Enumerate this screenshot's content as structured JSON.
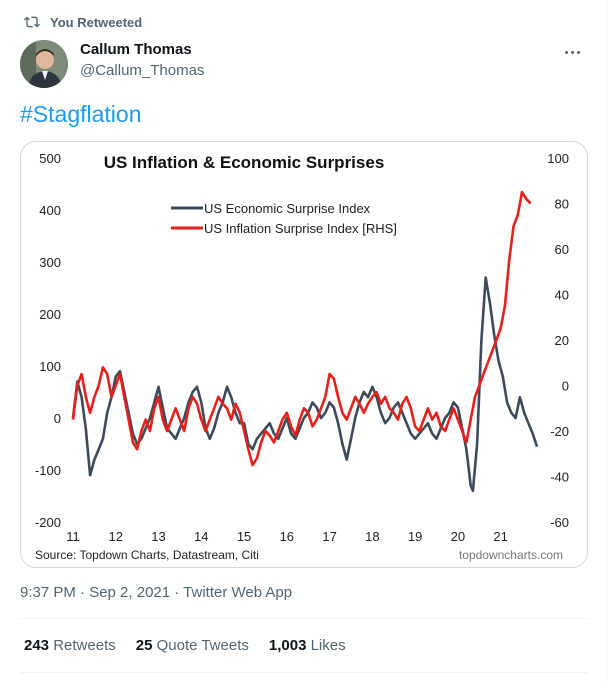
{
  "retweet_header": {
    "label": "You Retweeted",
    "icon": "retweet-icon"
  },
  "author": {
    "name": "Callum Thomas",
    "handle": "@Callum_Thomas"
  },
  "tweet": {
    "text": "#Stagflation"
  },
  "meta": {
    "timestamp": "9:37 PM · Sep 2, 2021 · Twitter Web App"
  },
  "stats": [
    {
      "count": "243",
      "label": "Retweets"
    },
    {
      "count": "25",
      "label": "Quote Tweets"
    },
    {
      "count": "1,003",
      "label": "Likes"
    }
  ],
  "colors": {
    "link": "#1d9bf0",
    "muted": "#536471",
    "econ": "#3d4a5c",
    "infl": "#e8201c"
  },
  "chart_data": {
    "type": "line",
    "title": "US Inflation & Economic Surprises",
    "source": "Source: Topdown Charts, Datastream, Citi",
    "watermark": "topdowncharts.com",
    "x_ticks": [
      "11",
      "12",
      "13",
      "14",
      "15",
      "16",
      "17",
      "18",
      "19",
      "20",
      "21"
    ],
    "y_left_ticks": [
      "500",
      "400",
      "300",
      "200",
      "100",
      "0",
      "-100",
      "-200"
    ],
    "y_right_ticks": [
      "100",
      "80",
      "60",
      "40",
      "20",
      "0",
      "-20",
      "-40",
      "-60"
    ],
    "ylim_left": [
      -200,
      500
    ],
    "ylim_right": [
      -60,
      100
    ],
    "legend_position": "top-center",
    "grid": false,
    "series": [
      {
        "name": "US Economic Surprise Index",
        "axis": "left",
        "color": "#3d4a5c",
        "points": [
          [
            2011.0,
            0
          ],
          [
            2011.1,
            70
          ],
          [
            2011.2,
            40
          ],
          [
            2011.3,
            -20
          ],
          [
            2011.4,
            -110
          ],
          [
            2011.5,
            -80
          ],
          [
            2011.6,
            -60
          ],
          [
            2011.7,
            -40
          ],
          [
            2011.8,
            10
          ],
          [
            2011.9,
            40
          ],
          [
            2012.0,
            80
          ],
          [
            2012.1,
            90
          ],
          [
            2012.2,
            50
          ],
          [
            2012.3,
            10
          ],
          [
            2012.4,
            -30
          ],
          [
            2012.5,
            -50
          ],
          [
            2012.6,
            -40
          ],
          [
            2012.7,
            -20
          ],
          [
            2012.8,
            0
          ],
          [
            2012.9,
            30
          ],
          [
            2013.0,
            60
          ],
          [
            2013.1,
            20
          ],
          [
            2013.2,
            -20
          ],
          [
            2013.3,
            -30
          ],
          [
            2013.4,
            -40
          ],
          [
            2013.5,
            -20
          ],
          [
            2013.6,
            0
          ],
          [
            2013.7,
            30
          ],
          [
            2013.8,
            50
          ],
          [
            2013.9,
            60
          ],
          [
            2014.0,
            30
          ],
          [
            2014.1,
            -20
          ],
          [
            2014.2,
            -40
          ],
          [
            2014.3,
            -20
          ],
          [
            2014.4,
            10
          ],
          [
            2014.5,
            30
          ],
          [
            2014.6,
            60
          ],
          [
            2014.7,
            40
          ],
          [
            2014.8,
            10
          ],
          [
            2014.9,
            -10
          ],
          [
            2015.0,
            -10
          ],
          [
            2015.1,
            -50
          ],
          [
            2015.2,
            -60
          ],
          [
            2015.3,
            -40
          ],
          [
            2015.4,
            -30
          ],
          [
            2015.5,
            -20
          ],
          [
            2015.6,
            -10
          ],
          [
            2015.7,
            -30
          ],
          [
            2015.8,
            -40
          ],
          [
            2015.9,
            -20
          ],
          [
            2016.0,
            0
          ],
          [
            2016.1,
            -30
          ],
          [
            2016.2,
            -40
          ],
          [
            2016.3,
            -20
          ],
          [
            2016.4,
            0
          ],
          [
            2016.5,
            10
          ],
          [
            2016.6,
            30
          ],
          [
            2016.7,
            20
          ],
          [
            2016.8,
            0
          ],
          [
            2016.9,
            10
          ],
          [
            2017.0,
            30
          ],
          [
            2017.1,
            20
          ],
          [
            2017.2,
            -10
          ],
          [
            2017.3,
            -50
          ],
          [
            2017.4,
            -80
          ],
          [
            2017.5,
            -40
          ],
          [
            2017.6,
            0
          ],
          [
            2017.7,
            30
          ],
          [
            2017.8,
            50
          ],
          [
            2017.9,
            40
          ],
          [
            2018.0,
            60
          ],
          [
            2018.1,
            40
          ],
          [
            2018.2,
            10
          ],
          [
            2018.3,
            -10
          ],
          [
            2018.4,
            0
          ],
          [
            2018.5,
            20
          ],
          [
            2018.6,
            30
          ],
          [
            2018.7,
            10
          ],
          [
            2018.8,
            -10
          ],
          [
            2018.9,
            -30
          ],
          [
            2019.0,
            -40
          ],
          [
            2019.1,
            -30
          ],
          [
            2019.2,
            -20
          ],
          [
            2019.3,
            -10
          ],
          [
            2019.4,
            -30
          ],
          [
            2019.5,
            -40
          ],
          [
            2019.6,
            -20
          ],
          [
            2019.7,
            0
          ],
          [
            2019.8,
            10
          ],
          [
            2019.9,
            30
          ],
          [
            2020.0,
            20
          ],
          [
            2020.1,
            -20
          ],
          [
            2020.2,
            -60
          ],
          [
            2020.3,
            -130
          ],
          [
            2020.35,
            -140
          ],
          [
            2020.45,
            -50
          ],
          [
            2020.55,
            150
          ],
          [
            2020.65,
            270
          ],
          [
            2020.75,
            220
          ],
          [
            2020.85,
            160
          ],
          [
            2020.95,
            110
          ],
          [
            2021.05,
            80
          ],
          [
            2021.15,
            30
          ],
          [
            2021.25,
            10
          ],
          [
            2021.35,
            0
          ],
          [
            2021.45,
            40
          ],
          [
            2021.55,
            10
          ],
          [
            2021.65,
            -10
          ],
          [
            2021.75,
            -30
          ],
          [
            2021.85,
            -55
          ]
        ]
      },
      {
        "name": "US Inflation Surprise Index [RHS]",
        "axis": "right",
        "color": "#e8201c",
        "points": [
          [
            2011.0,
            -15
          ],
          [
            2011.1,
            0
          ],
          [
            2011.2,
            5
          ],
          [
            2011.3,
            -5
          ],
          [
            2011.4,
            -12
          ],
          [
            2011.5,
            -5
          ],
          [
            2011.6,
            0
          ],
          [
            2011.7,
            8
          ],
          [
            2011.8,
            5
          ],
          [
            2011.9,
            -5
          ],
          [
            2012.0,
            0
          ],
          [
            2012.1,
            5
          ],
          [
            2012.2,
            -5
          ],
          [
            2012.3,
            -15
          ],
          [
            2012.4,
            -25
          ],
          [
            2012.5,
            -28
          ],
          [
            2012.6,
            -20
          ],
          [
            2012.7,
            -15
          ],
          [
            2012.8,
            -20
          ],
          [
            2012.9,
            -10
          ],
          [
            2013.0,
            -5
          ],
          [
            2013.1,
            -15
          ],
          [
            2013.2,
            -20
          ],
          [
            2013.3,
            -15
          ],
          [
            2013.4,
            -10
          ],
          [
            2013.5,
            -15
          ],
          [
            2013.6,
            -20
          ],
          [
            2013.7,
            -10
          ],
          [
            2013.8,
            -5
          ],
          [
            2013.9,
            -8
          ],
          [
            2014.0,
            -15
          ],
          [
            2014.1,
            -20
          ],
          [
            2014.2,
            -15
          ],
          [
            2014.3,
            -10
          ],
          [
            2014.4,
            -5
          ],
          [
            2014.5,
            -8
          ],
          [
            2014.6,
            -10
          ],
          [
            2014.7,
            -15
          ],
          [
            2014.8,
            -8
          ],
          [
            2014.9,
            -12
          ],
          [
            2015.0,
            -20
          ],
          [
            2015.1,
            -28
          ],
          [
            2015.2,
            -35
          ],
          [
            2015.3,
            -32
          ],
          [
            2015.4,
            -25
          ],
          [
            2015.5,
            -20
          ],
          [
            2015.6,
            -22
          ],
          [
            2015.7,
            -25
          ],
          [
            2015.8,
            -20
          ],
          [
            2015.9,
            -15
          ],
          [
            2016.0,
            -12
          ],
          [
            2016.1,
            -18
          ],
          [
            2016.2,
            -22
          ],
          [
            2016.3,
            -15
          ],
          [
            2016.4,
            -10
          ],
          [
            2016.5,
            -12
          ],
          [
            2016.6,
            -18
          ],
          [
            2016.7,
            -15
          ],
          [
            2016.8,
            -10
          ],
          [
            2016.9,
            -5
          ],
          [
            2017.0,
            5
          ],
          [
            2017.1,
            3
          ],
          [
            2017.2,
            -5
          ],
          [
            2017.3,
            -12
          ],
          [
            2017.4,
            -15
          ],
          [
            2017.5,
            -10
          ],
          [
            2017.6,
            -5
          ],
          [
            2017.7,
            -8
          ],
          [
            2017.8,
            -12
          ],
          [
            2017.9,
            -8
          ],
          [
            2018.0,
            -5
          ],
          [
            2018.1,
            -3
          ],
          [
            2018.2,
            -8
          ],
          [
            2018.3,
            -5
          ],
          [
            2018.4,
            -10
          ],
          [
            2018.5,
            -12
          ],
          [
            2018.6,
            -15
          ],
          [
            2018.7,
            -8
          ],
          [
            2018.8,
            -5
          ],
          [
            2018.9,
            -10
          ],
          [
            2019.0,
            -18
          ],
          [
            2019.1,
            -20
          ],
          [
            2019.2,
            -15
          ],
          [
            2019.3,
            -10
          ],
          [
            2019.4,
            -15
          ],
          [
            2019.5,
            -12
          ],
          [
            2019.6,
            -18
          ],
          [
            2019.7,
            -20
          ],
          [
            2019.8,
            -15
          ],
          [
            2019.9,
            -10
          ],
          [
            2020.0,
            -15
          ],
          [
            2020.1,
            -20
          ],
          [
            2020.2,
            -25
          ],
          [
            2020.3,
            -15
          ],
          [
            2020.4,
            -5
          ],
          [
            2020.5,
            0
          ],
          [
            2020.6,
            5
          ],
          [
            2020.7,
            10
          ],
          [
            2020.8,
            15
          ],
          [
            2020.9,
            20
          ],
          [
            2021.0,
            25
          ],
          [
            2021.1,
            35
          ],
          [
            2021.2,
            55
          ],
          [
            2021.3,
            70
          ],
          [
            2021.4,
            75
          ],
          [
            2021.5,
            85
          ],
          [
            2021.6,
            82
          ],
          [
            2021.7,
            80
          ]
        ]
      }
    ]
  }
}
